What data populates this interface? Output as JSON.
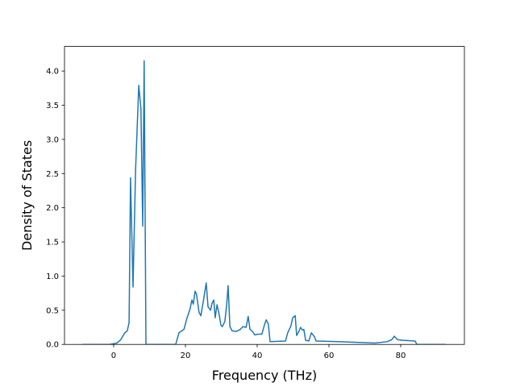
{
  "chart_data": {
    "type": "line",
    "xlabel": "Frequency (THz)",
    "ylabel": "Density of States",
    "xlim": [
      -13.7,
      97.75
    ],
    "ylim": [
      0,
      4.36
    ],
    "xticks": [
      0,
      20,
      40,
      60,
      80
    ],
    "yticks": [
      {
        "value": 0,
        "label": "0.0"
      },
      {
        "value": 0.5,
        "label": "0.5"
      },
      {
        "value": 1,
        "label": "1.0"
      },
      {
        "value": 1.5,
        "label": "1.5"
      },
      {
        "value": 2,
        "label": "2.0"
      },
      {
        "value": 2.5,
        "label": "2.5"
      },
      {
        "value": 3,
        "label": "3.0"
      },
      {
        "value": 3.5,
        "label": "3.5"
      },
      {
        "value": 4,
        "label": "4.0"
      }
    ],
    "grid": false,
    "series": [
      {
        "color": "#1f77b4",
        "x": [
          -8.8,
          -1.1,
          0.9,
          2.0,
          3.1,
          3.8,
          4.3,
          4.7,
          5.4,
          6.1,
          7.0,
          7.6,
          8.1,
          8.5,
          9.0,
          17.3,
          18.2,
          19.6,
          20.4,
          21.3,
          21.8,
          22.2,
          22.7,
          23.1,
          23.8,
          24.3,
          24.7,
          25.2,
          25.8,
          26.3,
          27.0,
          27.4,
          27.9,
          28.3,
          28.8,
          29.4,
          29.9,
          30.3,
          31.0,
          31.5,
          31.9,
          32.4,
          33.0,
          34.2,
          35.3,
          36.0,
          36.9,
          37.5,
          38.0,
          38.7,
          39.3,
          40.2,
          41.3,
          42.0,
          42.5,
          43.1,
          43.6,
          47.9,
          48.5,
          49.4,
          49.9,
          50.6,
          51.0,
          51.7,
          52.1,
          52.6,
          53.0,
          53.5,
          54.4,
          55.1,
          56.0,
          56.4,
          62.7,
          72.8,
          76.2,
          77.5,
          78.2,
          79.1,
          80.7,
          84.0,
          84.5,
          92.6
        ],
        "values": [
          0,
          0,
          0.02,
          0.07,
          0.17,
          0.2,
          0.32,
          2.44,
          0.84,
          2.54,
          3.79,
          3.45,
          1.73,
          4.15,
          0,
          0,
          0.17,
          0.22,
          0.38,
          0.52,
          0.65,
          0.59,
          0.78,
          0.73,
          0.47,
          0.42,
          0.54,
          0.7,
          0.9,
          0.55,
          0.5,
          0.6,
          0.65,
          0.39,
          0.58,
          0.44,
          0.28,
          0.26,
          0.34,
          0.58,
          0.86,
          0.26,
          0.2,
          0.19,
          0.22,
          0.26,
          0.25,
          0.41,
          0.22,
          0.19,
          0.14,
          0.15,
          0.15,
          0.28,
          0.36,
          0.3,
          0.04,
          0.05,
          0.17,
          0.27,
          0.39,
          0.42,
          0.13,
          0.2,
          0.25,
          0.21,
          0.22,
          0.06,
          0.05,
          0.17,
          0.11,
          0.05,
          0.04,
          0.02,
          0.04,
          0.07,
          0.12,
          0.07,
          0.06,
          0.05,
          0,
          0
        ]
      }
    ]
  }
}
